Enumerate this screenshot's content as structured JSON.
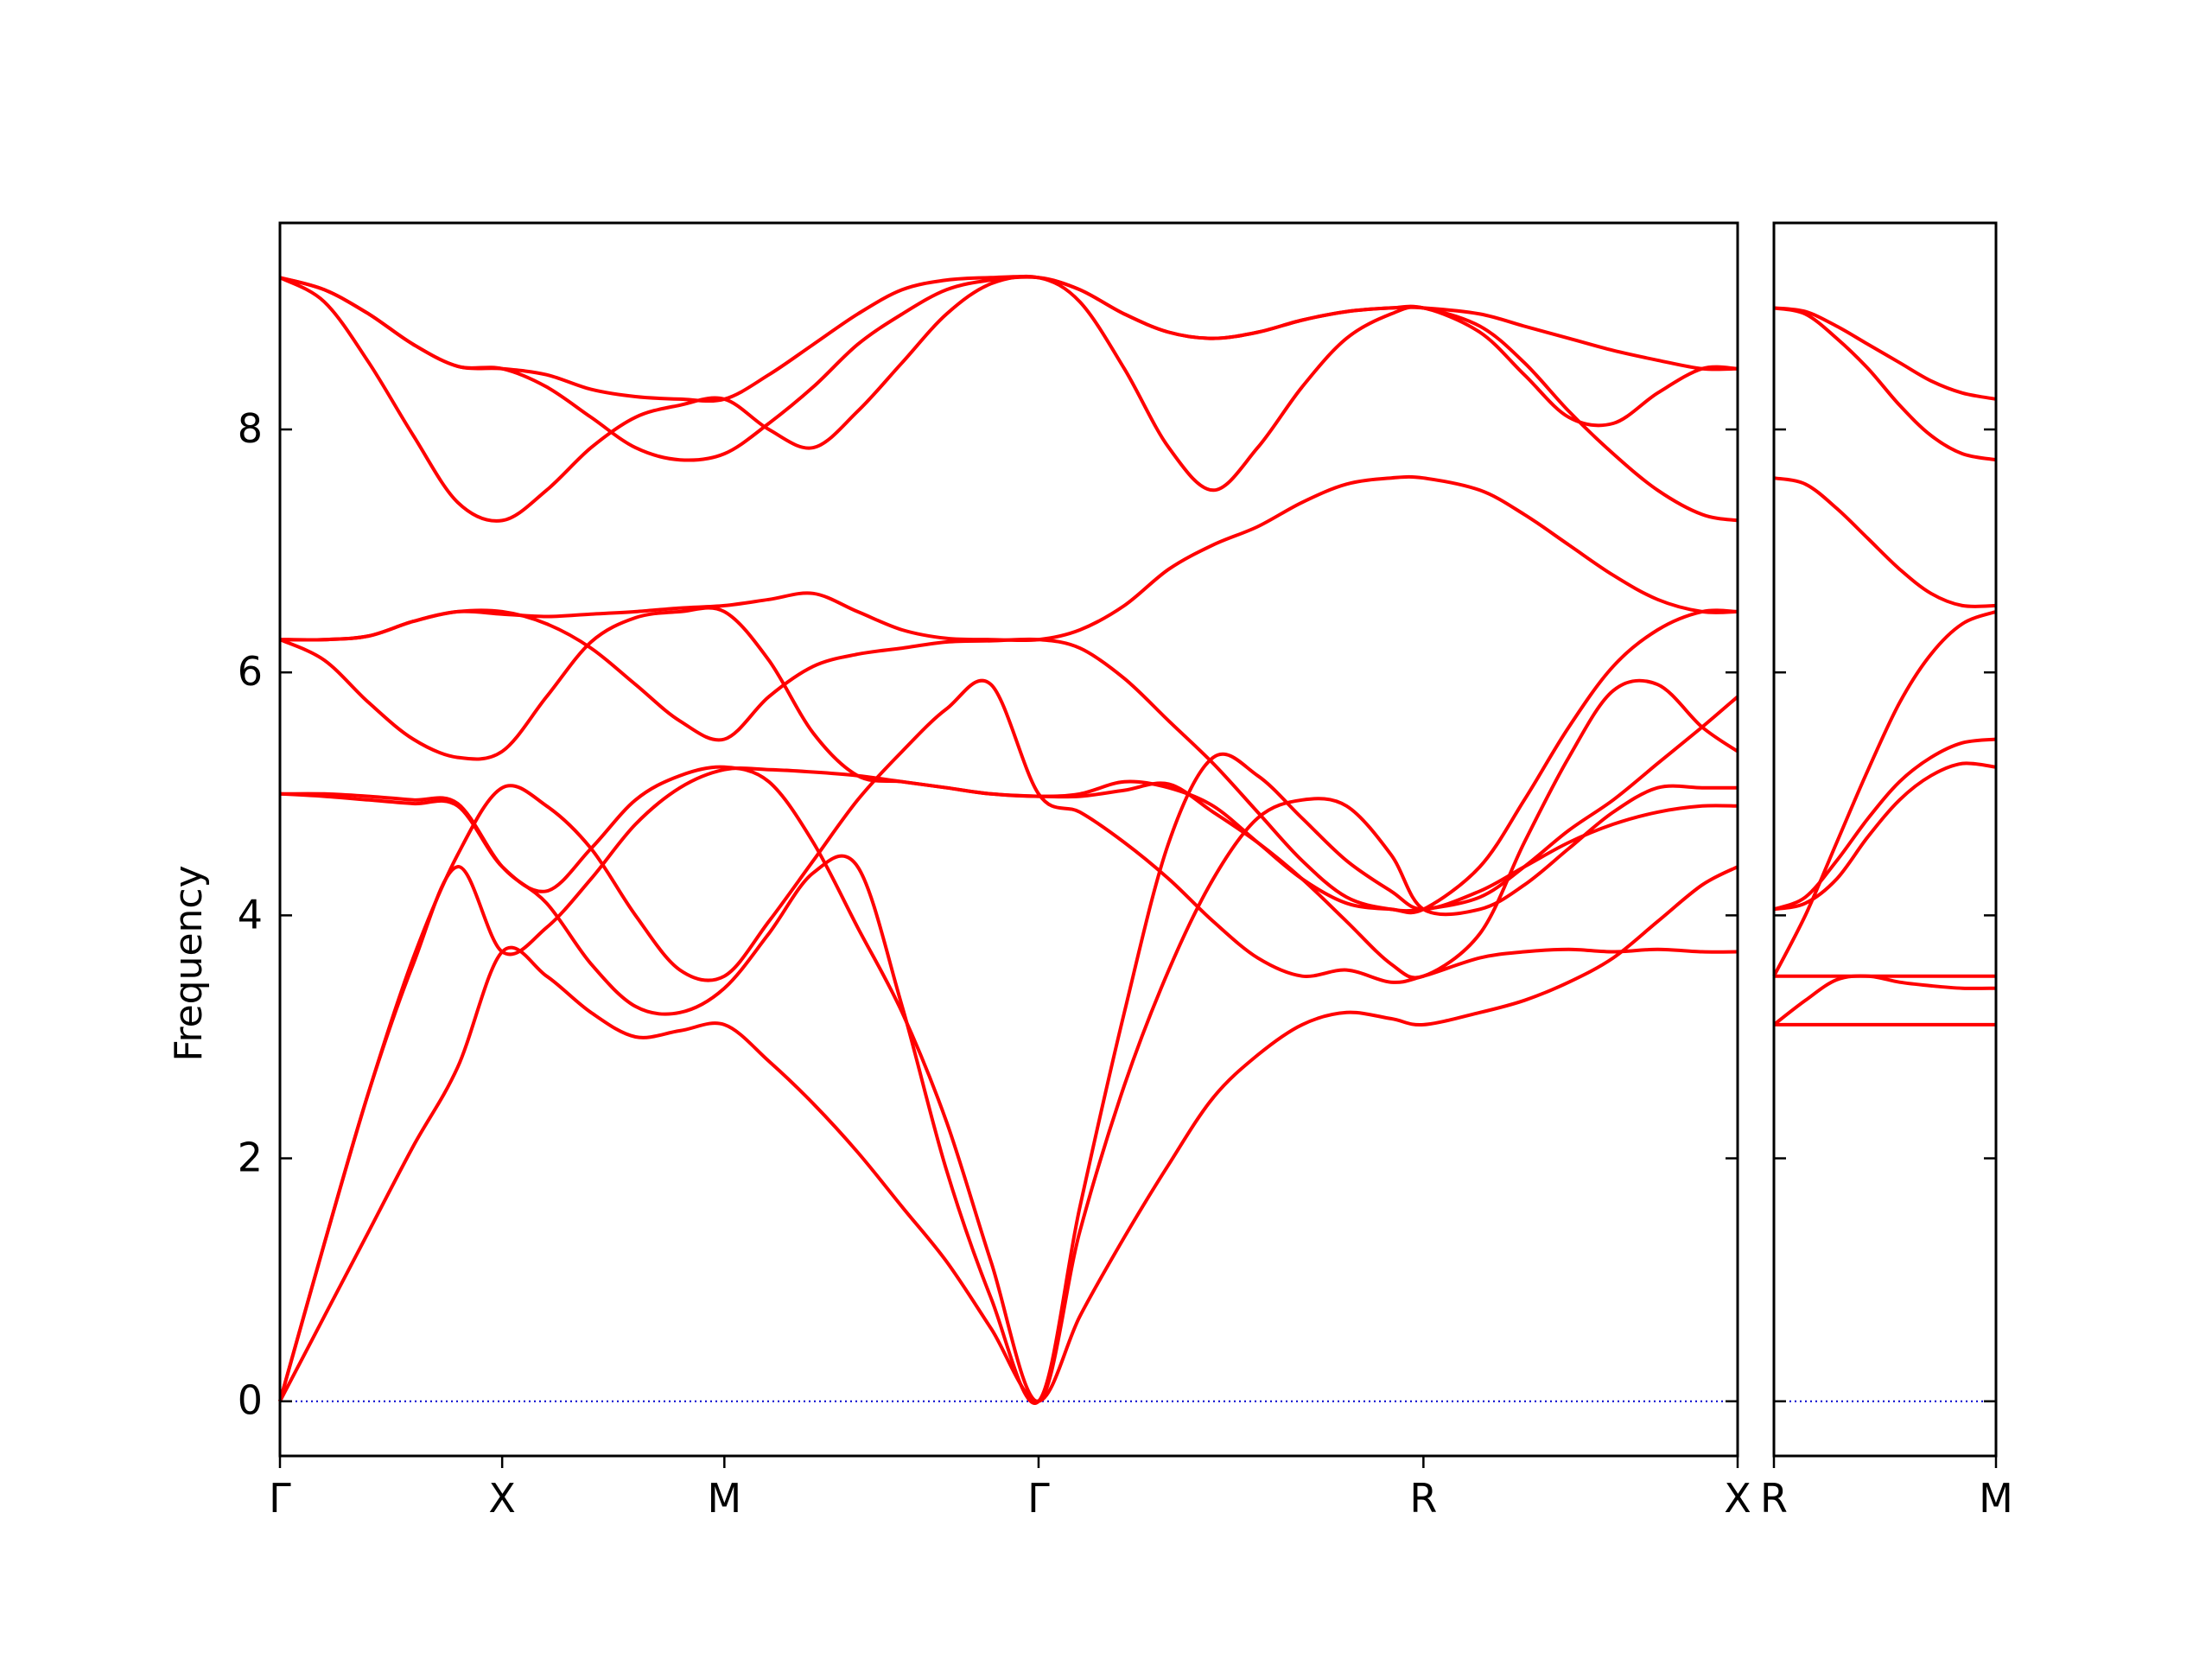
{
  "chart_data": {
    "type": "line",
    "ylabel": "Frequency",
    "ylim": [
      -0.45,
      9.7
    ],
    "yticks": [
      0,
      2,
      4,
      6,
      8
    ],
    "band_color": "#ff0000",
    "zero_line_color": "#0000cd",
    "panels": [
      {
        "xticks": [
          {
            "label": "Γ",
            "x": 0.0
          },
          {
            "label": "X",
            "x": 0.5
          },
          {
            "label": "M",
            "x": 1.0
          },
          {
            "label": "Γ",
            "x": 1.707
          },
          {
            "label": "R",
            "x": 2.573
          },
          {
            "label": "X",
            "x": 3.28
          }
        ],
        "series": [
          {
            "x": [
              0,
              0.1,
              0.2,
              0.3,
              0.4,
              0.5,
              0.6,
              0.7,
              0.8,
              0.9,
              1.0,
              1.1,
              1.2,
              1.3,
              1.4,
              1.5,
              1.6,
              1.707,
              1.8,
              1.9,
              2.0,
              2.1,
              2.2,
              2.3,
              2.4,
              2.5,
              2.573,
              2.7,
              2.8,
              2.9,
              3.0,
              3.1,
              3.2,
              3.28
            ],
            "y": [
              0,
              0.7,
              1.4,
              2.1,
              2.75,
              3.7,
              3.5,
              3.2,
              3.0,
              3.05,
              3.1,
              2.8,
              2.45,
              2.05,
              1.6,
              1.15,
              0.6,
              0,
              0.7,
              1.35,
              1.95,
              2.5,
              2.85,
              3.1,
              3.2,
              3.15,
              3.1,
              3.2,
              3.3,
              3.45,
              3.65,
              3.95,
              4.25,
              4.4
            ]
          },
          {
            "x": [
              0,
              0.1,
              0.2,
              0.3,
              0.4,
              0.5,
              0.6,
              0.7,
              0.8,
              0.9,
              1.0,
              1.1,
              1.2,
              1.3,
              1.4,
              1.5,
              1.6,
              1.707,
              1.8,
              1.9,
              2.0,
              2.1,
              2.2,
              2.3,
              2.4,
              2.5,
              2.573,
              2.7,
              2.8,
              2.9,
              3.0,
              3.1,
              3.2,
              3.28
            ],
            "y": [
              0,
              1.3,
              2.55,
              3.65,
              4.5,
              5.05,
              4.9,
              4.55,
              4.0,
              3.55,
              3.5,
              3.95,
              4.45,
              4.95,
              5.35,
              5.7,
              5.9,
              5.0,
              4.85,
              4.6,
              4.3,
              3.95,
              3.65,
              3.5,
              3.55,
              3.45,
              3.5,
              3.65,
              3.7,
              3.72,
              3.7,
              3.72,
              3.7,
              3.7
            ]
          },
          {
            "x": [
              0,
              0.1,
              0.2,
              0.3,
              0.4,
              0.5,
              0.6,
              0.7,
              0.8,
              0.9,
              1.0,
              1.1,
              1.2,
              1.3,
              1.4,
              1.5,
              1.6,
              1.707,
              1.8,
              1.9,
              2.0,
              2.1,
              2.2,
              2.3,
              2.4,
              2.5,
              2.573,
              2.7,
              2.8,
              2.9,
              3.0,
              3.1,
              3.2,
              3.28
            ],
            "y": [
              5.0,
              5.0,
              4.98,
              4.95,
              4.92,
              4.4,
              4.1,
              3.6,
              3.25,
              3.2,
              3.4,
              3.85,
              4.35,
              4.4,
              3.25,
              1.9,
              0.85,
              0,
              1.6,
              3.2,
              4.6,
              5.3,
              5.15,
              4.8,
              4.45,
              4.2,
              4.05,
              4.2,
              4.4,
              4.6,
              4.75,
              4.85,
              4.9,
              4.9
            ]
          },
          {
            "x": [
              0,
              0.1,
              0.2,
              0.3,
              0.4,
              0.5,
              0.6,
              0.7,
              0.8,
              0.9,
              1.0,
              1.1,
              1.2,
              1.3,
              1.4,
              1.5,
              1.6,
              1.707,
              1.8,
              1.9,
              2.0,
              2.1,
              2.2,
              2.3,
              2.4,
              2.5,
              2.573,
              2.7,
              2.8,
              2.9,
              3.0,
              3.1,
              3.2,
              3.28
            ],
            "y": [
              5.0,
              4.98,
              4.95,
              4.92,
              4.9,
              4.4,
              4.2,
              4.55,
              4.95,
              5.15,
              5.22,
              5.1,
              4.6,
              3.9,
              3.2,
              2.3,
              1.15,
              0,
              1.4,
              2.6,
              3.55,
              4.3,
              4.8,
              4.95,
              4.9,
              4.5,
              4.05,
              4.05,
              4.25,
              4.55,
              4.85,
              5.05,
              5.05,
              5.05
            ]
          },
          {
            "x": [
              0,
              0.1,
              0.2,
              0.3,
              0.4,
              0.5,
              0.6,
              0.7,
              0.8,
              0.9,
              1.0,
              1.1,
              1.2,
              1.3,
              1.4,
              1.5,
              1.6,
              1.707,
              1.8,
              1.9,
              2.0,
              2.1,
              2.2,
              2.3,
              2.4,
              2.5,
              2.573,
              2.7,
              2.8,
              2.9,
              3.0,
              3.1,
              3.2,
              3.28
            ],
            "y": [
              0,
              1.3,
              2.55,
              3.6,
              4.4,
              3.7,
              3.9,
              4.3,
              4.75,
              5.05,
              5.2,
              5.2,
              5.18,
              5.15,
              5.1,
              5.05,
              5.0,
              4.98,
              4.98,
              5.03,
              5.08,
              4.85,
              4.6,
              4.3,
              3.95,
              3.6,
              3.5,
              3.85,
              4.6,
              5.3,
              5.85,
              5.9,
              5.55,
              5.35
            ]
          },
          {
            "x": [
              0,
              0.1,
              0.2,
              0.3,
              0.4,
              0.5,
              0.6,
              0.7,
              0.8,
              0.9,
              1.0,
              1.1,
              1.2,
              1.3,
              1.4,
              1.5,
              1.6,
              1.707,
              1.8,
              1.9,
              2.0,
              2.1,
              2.2,
              2.3,
              2.4,
              2.5,
              2.573,
              2.7,
              2.8,
              2.9,
              3.0,
              3.1,
              3.2,
              3.28
            ],
            "y": [
              6.27,
              6.1,
              5.75,
              5.45,
              5.3,
              5.35,
              5.8,
              6.25,
              6.45,
              6.5,
              6.5,
              6.1,
              5.5,
              5.15,
              5.1,
              5.05,
              5.0,
              4.98,
              5.0,
              5.1,
              5.05,
              4.9,
              4.6,
              4.3,
              4.1,
              4.05,
              4.05,
              4.4,
              4.95,
              5.55,
              6.05,
              6.35,
              6.5,
              6.5
            ]
          },
          {
            "x": [
              0,
              0.1,
              0.2,
              0.3,
              0.4,
              0.5,
              0.6,
              0.7,
              0.8,
              0.9,
              1.0,
              1.1,
              1.2,
              1.3,
              1.4,
              1.5,
              1.6,
              1.707,
              1.8,
              1.9,
              2.0,
              2.1,
              2.2,
              2.3,
              2.4,
              2.5,
              2.573,
              2.7,
              2.8,
              2.9,
              3.0,
              3.1,
              3.2,
              3.28
            ],
            "y": [
              6.27,
              6.27,
              6.3,
              6.42,
              6.5,
              6.5,
              6.4,
              6.2,
              5.9,
              5.6,
              5.45,
              5.8,
              6.05,
              6.15,
              6.2,
              6.25,
              6.26,
              6.27,
              6.2,
              5.95,
              5.6,
              5.25,
              4.85,
              4.45,
              4.15,
              4.05,
              4.05,
              4.15,
              4.4,
              4.7,
              4.95,
              5.25,
              5.55,
              5.8
            ]
          },
          {
            "x": [
              0,
              0.1,
              0.2,
              0.3,
              0.4,
              0.5,
              0.6,
              0.7,
              0.8,
              0.9,
              1.0,
              1.1,
              1.2,
              1.3,
              1.4,
              1.5,
              1.6,
              1.707,
              1.8,
              1.9,
              2.0,
              2.1,
              2.2,
              2.3,
              2.4,
              2.5,
              2.573,
              2.7,
              2.8,
              2.9,
              3.0,
              3.1,
              3.2,
              3.28
            ],
            "y": [
              6.27,
              6.27,
              6.3,
              6.42,
              6.5,
              6.48,
              6.46,
              6.48,
              6.5,
              6.53,
              6.55,
              6.6,
              6.65,
              6.5,
              6.35,
              6.28,
              6.27,
              6.27,
              6.35,
              6.55,
              6.85,
              7.05,
              7.2,
              7.4,
              7.55,
              7.6,
              7.6,
              7.5,
              7.3,
              7.05,
              6.8,
              6.6,
              6.5,
              6.5
            ]
          },
          {
            "x": [
              0,
              0.1,
              0.2,
              0.3,
              0.4,
              0.5,
              0.6,
              0.7,
              0.8,
              0.9,
              1.0,
              1.1,
              1.2,
              1.3,
              1.4,
              1.5,
              1.6,
              1.707,
              1.8,
              1.9,
              2.0,
              2.1,
              2.2,
              2.3,
              2.4,
              2.5,
              2.573,
              2.7,
              2.8,
              2.9,
              3.0,
              3.1,
              3.2,
              3.28
            ],
            "y": [
              9.25,
              9.05,
              8.55,
              7.95,
              7.4,
              7.25,
              7.5,
              7.85,
              8.1,
              8.2,
              8.25,
              8.0,
              7.85,
              8.15,
              8.55,
              8.95,
              9.2,
              9.25,
              9.05,
              8.5,
              7.85,
              7.5,
              7.85,
              8.35,
              8.75,
              8.95,
              9.0,
              8.8,
              8.45,
              8.1,
              8.05,
              8.3,
              8.5,
              8.5
            ]
          },
          {
            "x": [
              0,
              0.1,
              0.2,
              0.3,
              0.4,
              0.5,
              0.6,
              0.7,
              0.8,
              0.9,
              1.0,
              1.1,
              1.2,
              1.3,
              1.4,
              1.5,
              1.6,
              1.707,
              1.8,
              1.9,
              2.0,
              2.1,
              2.2,
              2.3,
              2.4,
              2.5,
              2.573,
              2.7,
              2.8,
              2.9,
              3.0,
              3.1,
              3.2,
              3.28
            ],
            "y": [
              9.25,
              9.15,
              8.95,
              8.7,
              8.52,
              8.5,
              8.35,
              8.1,
              7.85,
              7.75,
              7.8,
              8.05,
              8.35,
              8.7,
              8.95,
              9.15,
              9.23,
              9.25,
              9.15,
              8.95,
              8.8,
              8.75,
              8.8,
              8.9,
              8.97,
              9.0,
              9.0,
              8.85,
              8.55,
              8.15,
              7.8,
              7.5,
              7.3,
              7.25
            ]
          },
          {
            "x": [
              0,
              0.1,
              0.2,
              0.3,
              0.4,
              0.5,
              0.6,
              0.7,
              0.8,
              0.9,
              1.0,
              1.1,
              1.2,
              1.3,
              1.4,
              1.5,
              1.6,
              1.707,
              1.8,
              1.9,
              2.0,
              2.1,
              2.2,
              2.3,
              2.4,
              2.5,
              2.573,
              2.7,
              2.8,
              2.9,
              3.0,
              3.1,
              3.2,
              3.28
            ],
            "y": [
              9.25,
              9.15,
              8.95,
              8.7,
              8.52,
              8.5,
              8.45,
              8.33,
              8.27,
              8.25,
              8.25,
              8.45,
              8.7,
              8.95,
              9.15,
              9.23,
              9.25,
              9.25,
              9.15,
              8.95,
              8.8,
              8.75,
              8.8,
              8.9,
              8.97,
              9.0,
              9.0,
              8.95,
              8.85,
              8.75,
              8.65,
              8.57,
              8.5,
              8.5
            ]
          }
        ]
      },
      {
        "xticks": [
          {
            "label": "R",
            "x": 0.0
          },
          {
            "label": "M",
            "x": 0.707
          }
        ],
        "series": [
          {
            "x": [
              0,
              0.707
            ],
            "y": [
              3.1,
              3.1
            ]
          },
          {
            "x": [
              0,
              0.1,
              0.2,
              0.3,
              0.4,
              0.5,
              0.6,
              0.707
            ],
            "y": [
              3.1,
              3.3,
              3.47,
              3.5,
              3.45,
              3.42,
              3.4,
              3.4
            ]
          },
          {
            "x": [
              0,
              0.707
            ],
            "y": [
              3.5,
              3.5
            ]
          },
          {
            "x": [
              0,
              0.1,
              0.2,
              0.3,
              0.4,
              0.5,
              0.6,
              0.707
            ],
            "y": [
              4.05,
              4.1,
              4.3,
              4.65,
              4.95,
              5.15,
              5.25,
              5.22
            ]
          },
          {
            "x": [
              0,
              0.1,
              0.2,
              0.3,
              0.4,
              0.5,
              0.6,
              0.707
            ],
            "y": [
              4.05,
              4.15,
              4.45,
              4.8,
              5.1,
              5.3,
              5.42,
              5.45
            ]
          },
          {
            "x": [
              0,
              0.1,
              0.2,
              0.3,
              0.4,
              0.5,
              0.6,
              0.707
            ],
            "y": [
              3.5,
              4.0,
              4.6,
              5.2,
              5.75,
              6.15,
              6.4,
              6.5
            ]
          },
          {
            "x": [
              0,
              0.1,
              0.2,
              0.3,
              0.4,
              0.5,
              0.6,
              0.707
            ],
            "y": [
              7.6,
              7.55,
              7.35,
              7.1,
              6.85,
              6.65,
              6.55,
              6.55
            ]
          },
          {
            "x": [
              0,
              0.1,
              0.2,
              0.3,
              0.4,
              0.5,
              0.6,
              0.707
            ],
            "y": [
              9.0,
              8.95,
              8.75,
              8.5,
              8.2,
              7.95,
              7.8,
              7.75
            ]
          },
          {
            "x": [
              0,
              0.1,
              0.2,
              0.3,
              0.4,
              0.5,
              0.6,
              0.707
            ],
            "y": [
              9.0,
              8.97,
              8.85,
              8.7,
              8.55,
              8.4,
              8.3,
              8.25
            ]
          }
        ]
      }
    ]
  }
}
